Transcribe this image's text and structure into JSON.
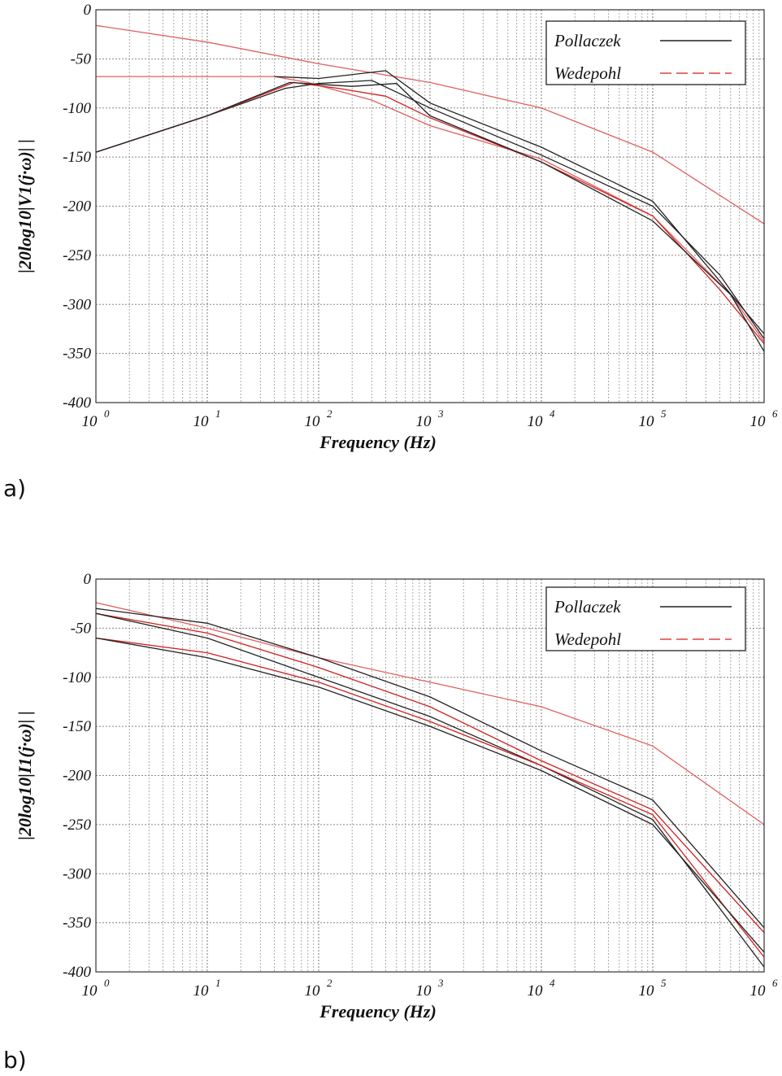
{
  "chart_data": [
    {
      "panel_label": "a)",
      "type": "line",
      "xlabel": "Frequency (Hz)",
      "ylabel": "|20log10|V1(j·ω)| |",
      "xscale": "log",
      "xlim": [
        1,
        1000000
      ],
      "ylim": [
        -400,
        0
      ],
      "xticks": [
        {
          "base": "10",
          "exp": "0"
        },
        {
          "base": "10",
          "exp": "1"
        },
        {
          "base": "10",
          "exp": "2"
        },
        {
          "base": "10",
          "exp": "3"
        },
        {
          "base": "10",
          "exp": "4"
        },
        {
          "base": "10",
          "exp": "5"
        },
        {
          "base": "10",
          "exp": "6"
        }
      ],
      "yticks": [
        "0",
        "-50",
        "-100",
        "-150",
        "-200",
        "-250",
        "-300",
        "-350",
        "-400"
      ],
      "grid": true,
      "legend": {
        "position": "top-right",
        "entries": [
          {
            "label": "Pollaczek",
            "color": "#222222",
            "style": "solid"
          },
          {
            "label": "Wedepohl",
            "color": "#e04040",
            "style": "dashed"
          }
        ]
      },
      "series": [
        {
          "group": "Wedepohl",
          "color": "#e06060",
          "points": [
            [
              1,
              -16
            ],
            [
              10,
              -33
            ],
            [
              100,
              -55
            ],
            [
              1000,
              -74
            ],
            [
              10000,
              -100
            ],
            [
              100000,
              -145
            ],
            [
              1000000,
              -218
            ]
          ]
        },
        {
          "group": "Wedepohl",
          "color": "#e06060",
          "points": [
            [
              1,
              -68
            ],
            [
              10,
              -68
            ],
            [
              40,
              -68
            ],
            [
              80,
              -74
            ],
            [
              300,
              -92
            ],
            [
              1000,
              -118
            ],
            [
              10000,
              -152
            ],
            [
              100000,
              -210
            ],
            [
              500000,
              -290
            ],
            [
              1000000,
              -338
            ]
          ]
        },
        {
          "group": "Pollaczek",
          "color": "#222222",
          "points": [
            [
              1,
              -145
            ],
            [
              10,
              -108
            ],
            [
              50,
              -80
            ],
            [
              100,
              -75
            ],
            [
              300,
              -72
            ],
            [
              1000,
              -100
            ],
            [
              10000,
              -148
            ],
            [
              100000,
              -200
            ],
            [
              400000,
              -270
            ],
            [
              1000000,
              -335
            ]
          ]
        },
        {
          "group": "Wedepohl",
          "color": "#d02020",
          "points": [
            [
              1,
              -145
            ],
            [
              10,
              -108
            ],
            [
              60,
              -74
            ],
            [
              150,
              -80
            ],
            [
              400,
              -88
            ],
            [
              1000,
              -110
            ],
            [
              10000,
              -155
            ],
            [
              100000,
              -210
            ],
            [
              400000,
              -285
            ],
            [
              1000000,
              -340
            ]
          ]
        },
        {
          "group": "Pollaczek",
          "color": "#222222",
          "points": [
            [
              1,
              -145
            ],
            [
              10,
              -108
            ],
            [
              55,
              -74
            ],
            [
              200,
              -78
            ],
            [
              500,
              -75
            ],
            [
              1000,
              -108
            ],
            [
              10000,
              -155
            ],
            [
              100000,
              -215
            ],
            [
              500000,
              -290
            ],
            [
              1000000,
              -348
            ]
          ]
        },
        {
          "group": "Pollaczek",
          "color": "#222222",
          "points": [
            [
              40,
              -68
            ],
            [
              100,
              -70
            ],
            [
              400,
              -62
            ],
            [
              1000,
              -95
            ],
            [
              10000,
              -140
            ],
            [
              100000,
              -195
            ],
            [
              1000000,
              -330
            ]
          ]
        }
      ]
    },
    {
      "panel_label": "b)",
      "type": "line",
      "xlabel": "Frequency (Hz)",
      "ylabel": "|20log10|I1(j·ω)| |",
      "xscale": "log",
      "xlim": [
        1,
        1000000
      ],
      "ylim": [
        -400,
        0
      ],
      "xticks": [
        {
          "base": "10",
          "exp": "0"
        },
        {
          "base": "10",
          "exp": "1"
        },
        {
          "base": "10",
          "exp": "2"
        },
        {
          "base": "10",
          "exp": "3"
        },
        {
          "base": "10",
          "exp": "4"
        },
        {
          "base": "10",
          "exp": "5"
        },
        {
          "base": "10",
          "exp": "6"
        }
      ],
      "yticks": [
        "0",
        "-50",
        "-100",
        "-150",
        "-200",
        "-250",
        "-300",
        "-350",
        "-400"
      ],
      "grid": true,
      "legend": {
        "position": "top-right",
        "entries": [
          {
            "label": "Pollaczek",
            "color": "#222222",
            "style": "solid"
          },
          {
            "label": "Wedepohl",
            "color": "#e04040",
            "style": "dashed"
          }
        ]
      },
      "series": [
        {
          "group": "Wedepohl",
          "color": "#e06060",
          "points": [
            [
              1,
              -24
            ],
            [
              10,
              -50
            ],
            [
              100,
              -80
            ],
            [
              1000,
              -105
            ],
            [
              10000,
              -130
            ],
            [
              100000,
              -170
            ],
            [
              1000000,
              -250
            ]
          ]
        },
        {
          "group": "Pollaczek",
          "color": "#222222",
          "points": [
            [
              1,
              -30
            ],
            [
              10,
              -45
            ],
            [
              100,
              -80
            ],
            [
              1000,
              -120
            ],
            [
              10000,
              -175
            ],
            [
              100000,
              -225
            ],
            [
              1000000,
              -355
            ]
          ]
        },
        {
          "group": "Wedepohl",
          "color": "#d02020",
          "points": [
            [
              1,
              -35
            ],
            [
              10,
              -55
            ],
            [
              100,
              -90
            ],
            [
              1000,
              -130
            ],
            [
              10000,
              -185
            ],
            [
              100000,
              -235
            ],
            [
              1000000,
              -360
            ]
          ]
        },
        {
          "group": "Pollaczek",
          "color": "#222222",
          "points": [
            [
              1,
              -35
            ],
            [
              10,
              -60
            ],
            [
              100,
              -100
            ],
            [
              1000,
              -140
            ],
            [
              10000,
              -190
            ],
            [
              100000,
              -245
            ],
            [
              1000000,
              -395
            ]
          ]
        },
        {
          "group": "Wedepohl",
          "color": "#d02020",
          "points": [
            [
              1,
              -60
            ],
            [
              10,
              -75
            ],
            [
              100,
              -105
            ],
            [
              1000,
              -145
            ],
            [
              10000,
              -190
            ],
            [
              100000,
              -240
            ],
            [
              1000000,
              -385
            ]
          ]
        },
        {
          "group": "Pollaczek",
          "color": "#222222",
          "points": [
            [
              1,
              -60
            ],
            [
              10,
              -80
            ],
            [
              100,
              -110
            ],
            [
              1000,
              -150
            ],
            [
              10000,
              -195
            ],
            [
              100000,
              -250
            ],
            [
              1000000,
              -380
            ]
          ]
        }
      ]
    }
  ]
}
